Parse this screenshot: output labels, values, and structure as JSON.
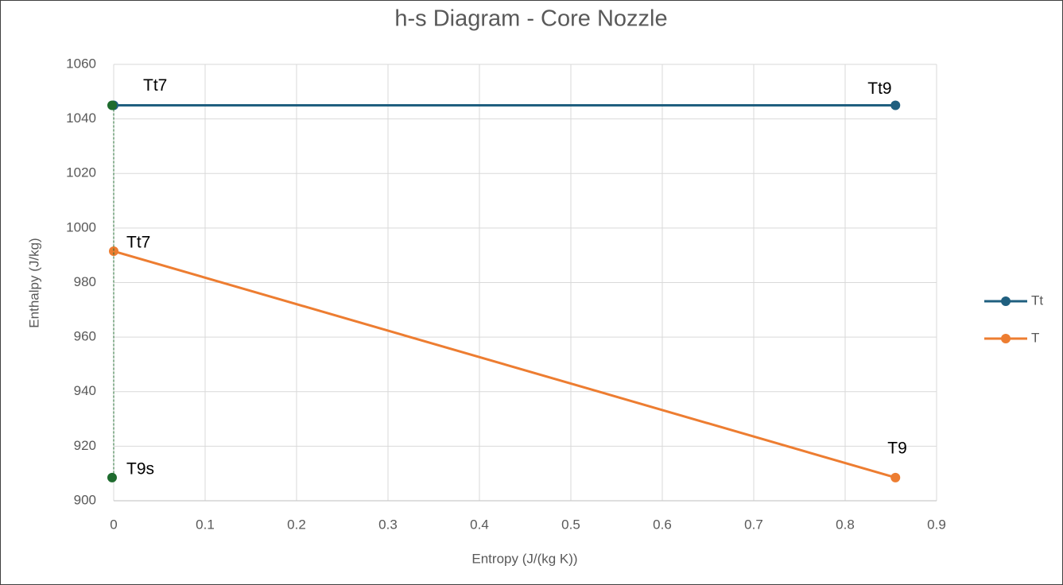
{
  "chart_data": {
    "type": "line",
    "title": "h-s Diagram - Core Nozzle",
    "x_label": "Entropy (J/(kg K))",
    "y_label": "Enthalpy (J/kg)",
    "series": [
      {
        "name": "Tt",
        "color": "#1f5f7f",
        "x": [
          0,
          0.855
        ],
        "values": [
          1045,
          1045
        ],
        "labels": [
          "Tt7",
          "Tt9"
        ]
      },
      {
        "name": "T",
        "color": "#ed7d31",
        "x": [
          0,
          0.855
        ],
        "values": [
          991.5,
          908.5
        ],
        "labels": [
          "Tt7",
          "T9"
        ]
      },
      {
        "color": "#1e6b2e",
        "dashed": true,
        "x": [
          0,
          0
        ],
        "values": [
          1045,
          908.5
        ],
        "labels": [
          null,
          "T9s"
        ]
      }
    ],
    "xlim": [
      0,
      0.9
    ],
    "xticks": [
      0,
      0.1,
      0.2,
      0.3,
      0.4,
      0.5,
      0.6,
      0.7,
      0.8,
      0.9
    ],
    "ylim": [
      900,
      1060
    ],
    "yticks": [
      900,
      920,
      940,
      960,
      980,
      1000,
      1020,
      1040,
      1060
    ],
    "grid": true,
    "legend": "right"
  }
}
